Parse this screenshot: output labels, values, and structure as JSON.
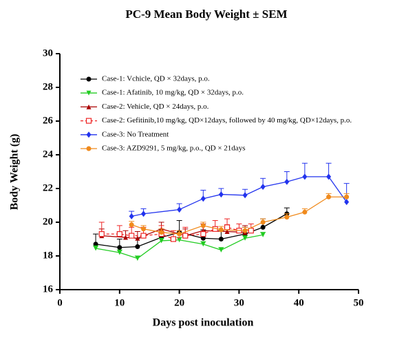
{
  "chart_data": {
    "type": "line",
    "title": "PC-9 Mean Body Weight ± SEM",
    "x_label": "Days post inoculation",
    "y_label": "Body Weight (g)",
    "xlim": [
      0,
      50
    ],
    "xticks": [
      0,
      10,
      20,
      30,
      40,
      50
    ],
    "ylim": [
      16,
      30
    ],
    "yticks": [
      16,
      18,
      20,
      22,
      24,
      26,
      28,
      30
    ],
    "series": [
      {
        "name": "Case-1: Vchicle, QD × 32days, p.o.",
        "color": "#000000",
        "marker": "circle",
        "dashed": false,
        "x": [
          6,
          10,
          13,
          17,
          20,
          24,
          27,
          31,
          34,
          38
        ],
        "values": [
          18.7,
          18.5,
          18.55,
          19.1,
          19.4,
          19.05,
          19.0,
          19.3,
          19.7,
          20.5
        ],
        "errors": [
          0.6,
          0.5,
          0.5,
          0.5,
          0.7,
          0.5,
          0.5,
          0.4,
          0.5,
          0.35
        ]
      },
      {
        "name": "Case-1: Afatinib, 10 mg/kg, QD × 32days, p.o.",
        "color": "#22cc22",
        "marker": "triangle-down",
        "dashed": false,
        "x": [
          6,
          10,
          13,
          17,
          20,
          24,
          27,
          31,
          34
        ],
        "values": [
          18.45,
          18.2,
          17.85,
          18.9,
          18.95,
          18.7,
          18.35,
          19.05,
          19.25
        ],
        "errors": [
          0.15,
          0.15,
          0.15,
          0.15,
          0.15,
          0.15,
          0.15,
          0.15,
          0.15
        ]
      },
      {
        "name": "Case-2: Vehicle, QD × 24days, p.o.",
        "color": "#aa0000",
        "marker": "triangle-up",
        "dashed": false,
        "x": [
          7,
          11,
          13,
          17,
          21,
          24,
          28,
          31
        ],
        "values": [
          19.2,
          19.1,
          19.05,
          19.6,
          19.2,
          19.5,
          19.45,
          19.4
        ],
        "errors": [
          0.4,
          0.4,
          0.4,
          0.4,
          0.4,
          0.4,
          0.4,
          0.4
        ]
      },
      {
        "name": "Case-2: Gefitinib,10 mg/kg, QD×12days, followed by 40 mg/kg, QD×12days, p.o.",
        "color": "#ee2222",
        "marker": "square-open",
        "dashed": true,
        "x": [
          7,
          10,
          12,
          14,
          17,
          19,
          21,
          24,
          26,
          28,
          30,
          32
        ],
        "values": [
          19.3,
          19.3,
          19.2,
          19.2,
          19.3,
          19.0,
          19.2,
          19.3,
          19.6,
          19.7,
          19.5,
          19.5
        ],
        "errors": [
          0.7,
          0.5,
          0.5,
          0.5,
          0.5,
          0.5,
          0.5,
          0.7,
          0.5,
          0.5,
          0.4,
          0.4
        ]
      },
      {
        "name": "Case-3: No Treatment",
        "color": "#2233ee",
        "marker": "diamond",
        "dashed": false,
        "x": [
          12,
          14,
          20,
          24,
          27,
          31,
          34,
          38,
          41,
          45,
          48
        ],
        "values": [
          20.35,
          20.5,
          20.75,
          21.4,
          21.65,
          21.6,
          22.1,
          22.4,
          22.7,
          22.7,
          21.2
        ],
        "errors": [
          0.3,
          0.3,
          0.35,
          0.5,
          0.35,
          0.35,
          0.5,
          0.6,
          0.8,
          0.8,
          1.1
        ]
      },
      {
        "name": "Case-3: AZD9291, 5 mg/kg, p.o., QD × 21days",
        "color": "#f08a1c",
        "marker": "circle",
        "dashed": false,
        "x": [
          12,
          14,
          17,
          20,
          24,
          27,
          31,
          34,
          38,
          41,
          45,
          48
        ],
        "values": [
          19.85,
          19.6,
          19.4,
          19.3,
          19.8,
          19.55,
          19.5,
          20.0,
          20.3,
          20.6,
          21.5,
          21.5
        ],
        "errors": [
          0.2,
          0.2,
          0.2,
          0.2,
          0.2,
          0.2,
          0.2,
          0.2,
          0.2,
          0.2,
          0.2,
          0.2
        ]
      }
    ]
  }
}
